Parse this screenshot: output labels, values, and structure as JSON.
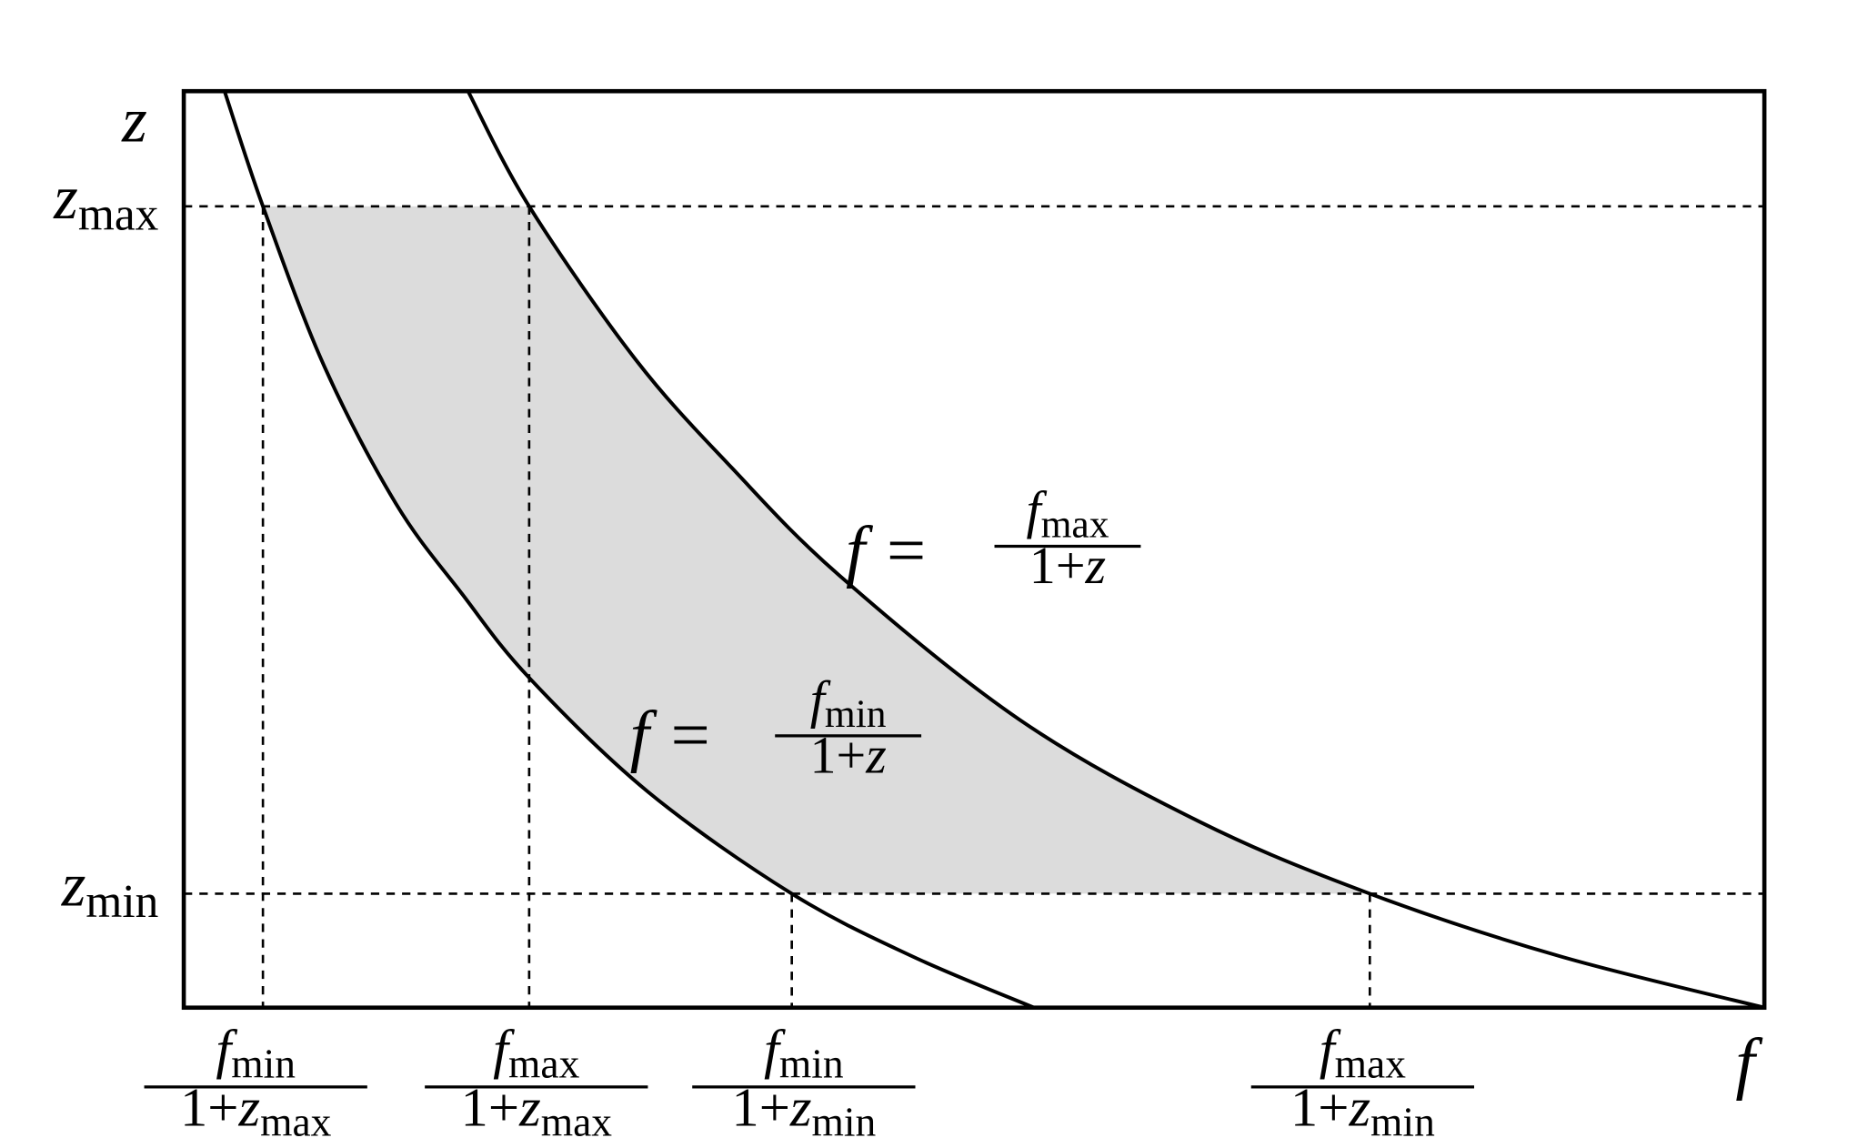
{
  "axes": {
    "y_label": "z",
    "x_label": "f"
  },
  "y_ticks": [
    {
      "symbol": "z",
      "subscript": "max"
    },
    {
      "symbol": "z",
      "subscript": "min"
    }
  ],
  "x_ticks": [
    {
      "numerator": {
        "symbol": "f",
        "subscript": "min"
      },
      "denominator": {
        "prefix": "1+",
        "symbol": "z",
        "subscript": "max"
      }
    },
    {
      "numerator": {
        "symbol": "f",
        "subscript": "max"
      },
      "denominator": {
        "prefix": "1+",
        "symbol": "z",
        "subscript": "max"
      }
    },
    {
      "numerator": {
        "symbol": "f",
        "subscript": "min"
      },
      "denominator": {
        "prefix": "1+",
        "symbol": "z",
        "subscript": "min"
      }
    },
    {
      "numerator": {
        "symbol": "f",
        "subscript": "max"
      },
      "denominator": {
        "prefix": "1+",
        "symbol": "z",
        "subscript": "min"
      }
    }
  ],
  "curves": [
    {
      "lhs": "f",
      "relation": "=",
      "numerator": {
        "symbol": "f",
        "subscript": "max"
      },
      "denominator": {
        "prefix": "1+",
        "symbol": "z"
      }
    },
    {
      "lhs": "f",
      "relation": "=",
      "numerator": {
        "symbol": "f",
        "subscript": "min"
      },
      "denominator": {
        "prefix": "1+",
        "symbol": "z"
      }
    }
  ]
}
